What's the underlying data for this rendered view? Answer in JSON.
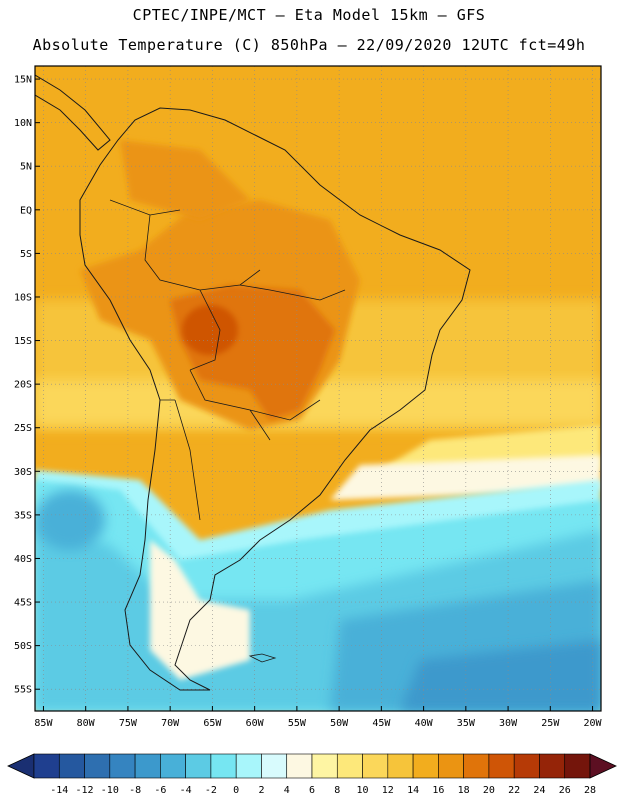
{
  "header": {
    "line1": "CPTEC/INPE/MCT –  Eta Model 15km – GFS",
    "line2": "Absolute Temperature (C) 850hPa – 22/09/2020 12UTC fct=49h"
  },
  "axes": {
    "lat_labels": [
      "15N",
      "10N",
      "5N",
      "EQ",
      "5S",
      "10S",
      "15S",
      "20S",
      "25S",
      "30S",
      "35S",
      "40S",
      "45S",
      "50S",
      "55S"
    ],
    "lat_values": [
      15,
      10,
      5,
      0,
      -5,
      -10,
      -15,
      -20,
      -25,
      -30,
      -35,
      -40,
      -45,
      -50,
      -55
    ],
    "lon_labels": [
      "85W",
      "80W",
      "75W",
      "70W",
      "65W",
      "60W",
      "55W",
      "50W",
      "45W",
      "40W",
      "35W",
      "30W",
      "25W",
      "20W"
    ],
    "lon_values": [
      -85,
      -80,
      -75,
      -70,
      -65,
      -60,
      -55,
      -50,
      -45,
      -40,
      -35,
      -30,
      -25,
      -20
    ],
    "lat_range": [
      -57.5,
      16.5
    ],
    "lon_range": [
      -86,
      -19
    ]
  },
  "colorbar": {
    "labels": [
      "-14",
      "-12",
      "-10",
      "-8",
      "-6",
      "-4",
      "-2",
      "0",
      "2",
      "4",
      "6",
      "8",
      "10",
      "12",
      "14",
      "16",
      "18",
      "20",
      "22",
      "24",
      "26",
      "28"
    ],
    "colors": [
      "#1f3f8f",
      "#25589f",
      "#2e6fb0",
      "#3584c0",
      "#3c99cc",
      "#48b0d8",
      "#5ccbe4",
      "#76e6f2",
      "#a8f6fb",
      "#d8fbfd",
      "#fdf8e2",
      "#fef5a3",
      "#fde87a",
      "#fbd75a",
      "#f6c43a",
      "#f2ad1e",
      "#eb9412",
      "#e0740a",
      "#cf5506",
      "#b63a06",
      "#952408",
      "#74150b"
    ],
    "low_arrow_color": "#1a2f72",
    "high_arrow_color": "#5c0f22"
  }
}
